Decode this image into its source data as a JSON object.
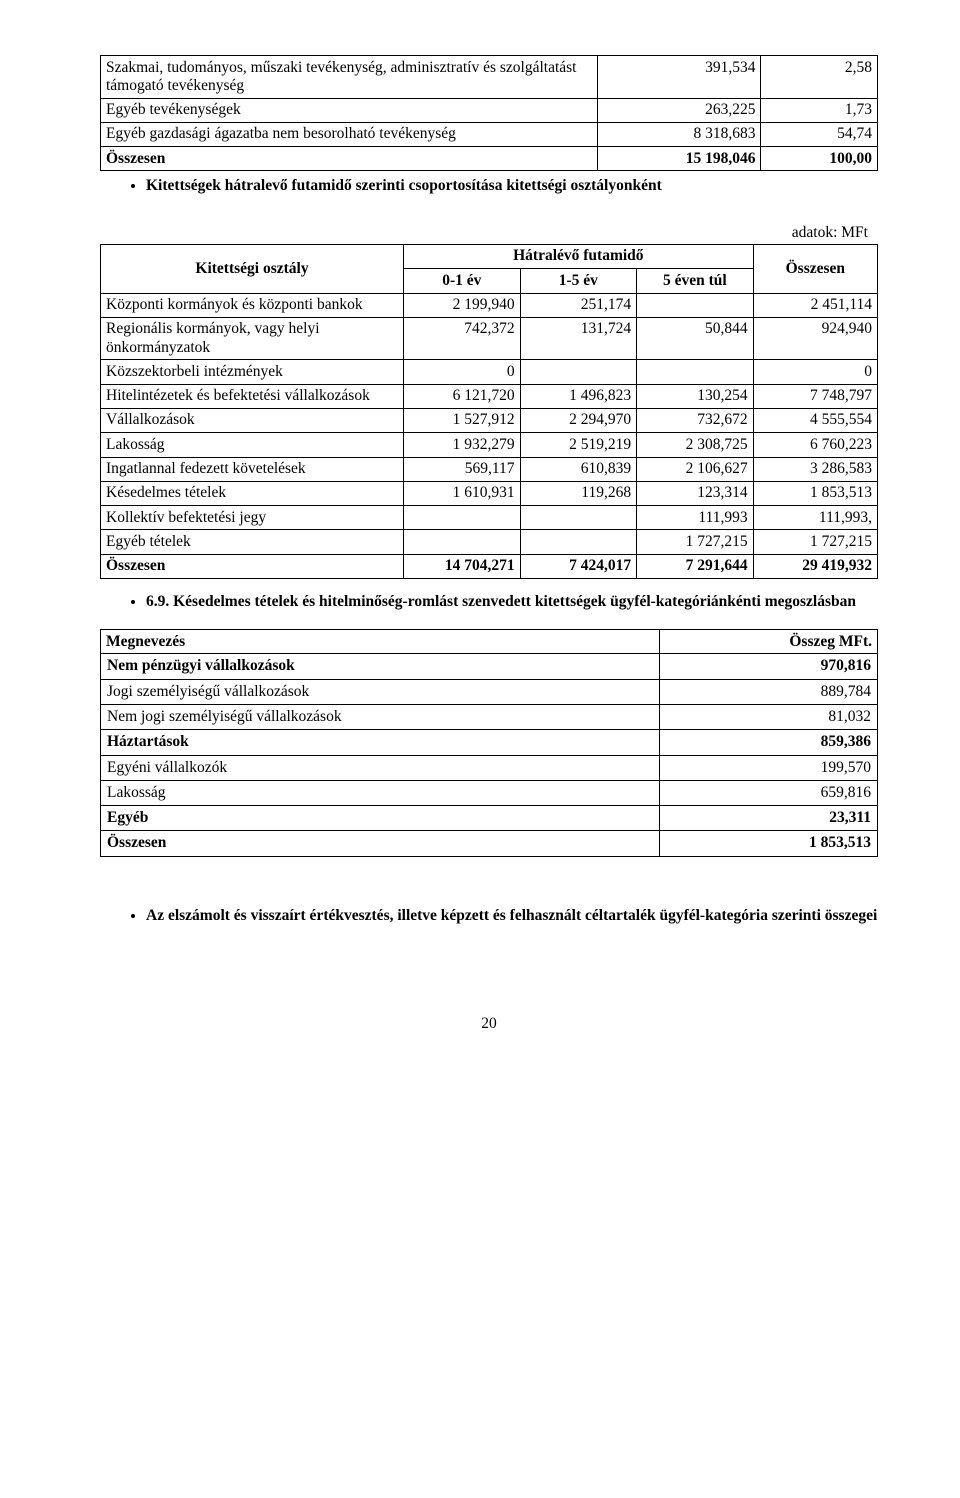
{
  "table1": {
    "rows": [
      {
        "label": "Szakmai, tudományos, műszaki tevékenység, adminisztratív és szolgáltatást támogató tevékenység",
        "v1": "391,534",
        "v2": "2,58",
        "bold": false
      },
      {
        "label": "Egyéb tevékenységek",
        "v1": "263,225",
        "v2": "1,73",
        "bold": false
      },
      {
        "label": "Egyéb gazdasági ágazatba nem besorolható tevékenység",
        "v1": "8 318,683",
        "v2": "54,74",
        "bold": false
      },
      {
        "label": "Összesen",
        "v1": "15 198,046",
        "v2": "100,00",
        "bold": true
      }
    ]
  },
  "bullet1": "Kitettségek hátralevő futamidő szerinti csoportosítása kitettségi osztályonként",
  "adatok_label": "adatok: MFt",
  "table2": {
    "head": {
      "category": "Kitettségi osztály",
      "futamido": "Hátralévő futamidő",
      "osszesen": "Összesen",
      "c1": "0-1 év",
      "c2": "1-5 év",
      "c3": "5 éven túl"
    },
    "rows": [
      {
        "label": "Központi kormányok és központi bankok",
        "c1": "2 199,940",
        "c2": "251,174",
        "c3": "",
        "sum": "2 451,114",
        "bold": false
      },
      {
        "label": "Regionális kormányok, vagy helyi önkormányzatok",
        "c1": "742,372",
        "c2": "131,724",
        "c3": "50,844",
        "sum": "924,940",
        "bold": false
      },
      {
        "label": "Közszektorbeli intézmények",
        "c1": "0",
        "c2": "",
        "c3": "",
        "sum": "0",
        "bold": false
      },
      {
        "label": "Hitelintézetek és befektetési vállalkozások",
        "c1": "6 121,720",
        "c2": "1 496,823",
        "c3": "130,254",
        "sum": "7 748,797",
        "bold": false
      },
      {
        "label": "Vállalkozások",
        "c1": "1 527,912",
        "c2": "2 294,970",
        "c3": "732,672",
        "sum": "4 555,554",
        "bold": false
      },
      {
        "label": "Lakosság",
        "c1": "1 932,279",
        "c2": "2 519,219",
        "c3": "2 308,725",
        "sum": "6 760,223",
        "bold": false
      },
      {
        "label": "Ingatlannal fedezett követelések",
        "c1": "569,117",
        "c2": "610,839",
        "c3": "2 106,627",
        "sum": "3 286,583",
        "bold": false
      },
      {
        "label": "Késedelmes tételek",
        "c1": "1 610,931",
        "c2": "119,268",
        "c3": "123,314",
        "sum": "1 853,513",
        "bold": false
      },
      {
        "label": "Kollektív befektetési jegy",
        "c1": "",
        "c2": "",
        "c3": "111,993",
        "sum": "111,993,",
        "bold": false
      },
      {
        "label": "Egyéb tételek",
        "c1": "",
        "c2": "",
        "c3": "1 727,215",
        "sum": "1 727,215",
        "bold": false
      },
      {
        "label": "Összesen",
        "c1": "14 704,271",
        "c2": "7 424,017",
        "c3": "7 291,644",
        "sum": "29 419,932",
        "bold": true
      }
    ]
  },
  "section69": {
    "num": "6.9.",
    "title": "Késedelmes tételek és hitelminőség-romlást szenvedett kitettségek ügyfél-kategóriánkénti megoszlásban"
  },
  "table3": {
    "head": {
      "c1": "Megnevezés",
      "c2": "Összeg MFt."
    },
    "rows": [
      {
        "label": "Nem pénzügyi vállalkozások",
        "val": "970,816",
        "bold": true
      },
      {
        "label": "Jogi személyiségű vállalkozások",
        "val": "889,784",
        "bold": false
      },
      {
        "label": "Nem jogi személyiségű vállalkozások",
        "val": "81,032",
        "bold": false
      },
      {
        "label": "Háztartások",
        "val": "859,386",
        "bold": true
      },
      {
        "label": "Egyéni vállalkozók",
        "val": "199,570",
        "bold": false
      },
      {
        "label": "Lakosság",
        "val": "659,816",
        "bold": false
      },
      {
        "label": "Egyéb",
        "val": "23,311",
        "bold": true
      },
      {
        "label": "Összesen",
        "val": "1 853,513",
        "bold": true
      }
    ]
  },
  "bullet_bottom": "Az elszámolt és visszaírt értékvesztés, illetve képzett és felhasznált céltartalék ügyfél-kategória szerinti összegei",
  "page_num": "20"
}
